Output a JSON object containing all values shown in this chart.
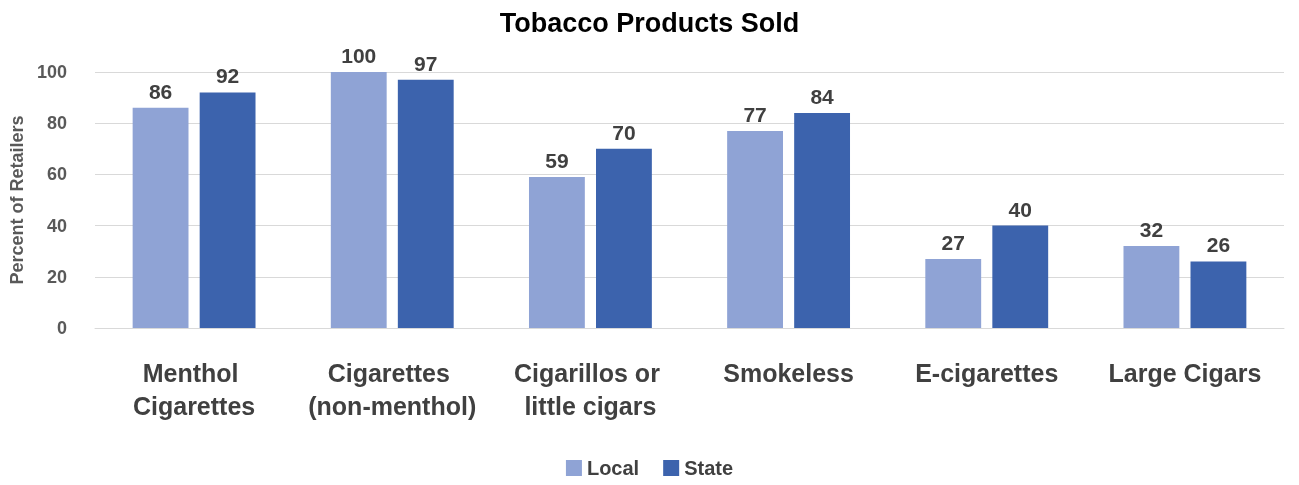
{
  "chart_data": {
    "type": "bar",
    "title": "Tobacco Products Sold",
    "ylabel": "Percent of Retailers",
    "categories": [
      "Menthol Cigarettes",
      "Cigarettes (non-menthol)",
      "Cigarillos or little cigars",
      "Smokeless",
      "E-cigarettes",
      "Large Cigars"
    ],
    "series": [
      {
        "name": "Local",
        "color": "#8fa3d5",
        "values": [
          86,
          100,
          59,
          77,
          27,
          32
        ]
      },
      {
        "name": "State",
        "color": "#3c63ad",
        "values": [
          92,
          97,
          70,
          84,
          40,
          26
        ]
      }
    ],
    "ylim": [
      0,
      100
    ],
    "yticks": [
      0,
      20,
      40,
      60,
      80,
      100
    ],
    "grid": "y",
    "legend": "bottom",
    "data_labels": true
  }
}
